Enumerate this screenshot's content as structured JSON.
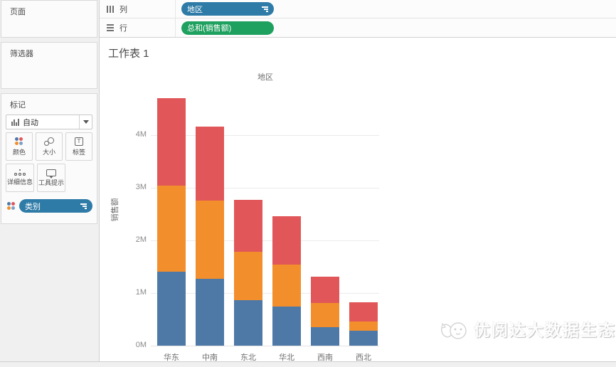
{
  "left_panel": {
    "pages_label": "页面",
    "filters_label": "筛选器",
    "marks": {
      "title": "标记",
      "mark_type": "自动",
      "buttons": [
        {
          "label": "颜色",
          "icon": "color-dots-icon"
        },
        {
          "label": "大小",
          "icon": "size-circles-icon"
        },
        {
          "label": "标签",
          "icon": "label-t-icon"
        },
        {
          "label": "详细信息",
          "icon": "detail-dots-icon"
        },
        {
          "label": "工具提示",
          "icon": "tooltip-bubble-icon"
        }
      ],
      "pill": {
        "label": "类别"
      }
    }
  },
  "shelves": {
    "columns": {
      "label": "列",
      "pill": "地区"
    },
    "rows": {
      "label": "行",
      "pill": "总和(销售额)"
    }
  },
  "worksheet": {
    "title": "工作表 1",
    "watermark": "优阅达大数据生态"
  },
  "chart_data": {
    "type": "bar",
    "stacked": true,
    "title": "地区",
    "xlabel": "",
    "ylabel": "销售额",
    "categories": [
      "华东",
      "中南",
      "东北",
      "华北",
      "西南",
      "西北"
    ],
    "series": [
      {
        "name": "blue-segment",
        "color": "#4e79a7",
        "values": [
          1.41,
          1.27,
          0.86,
          0.74,
          0.35,
          0.28
        ]
      },
      {
        "name": "orange-segment",
        "color": "#f28e2b",
        "values": [
          1.63,
          1.49,
          0.92,
          0.8,
          0.46,
          0.17
        ]
      },
      {
        "name": "red-segment",
        "color": "#e15759",
        "values": [
          1.66,
          1.4,
          0.98,
          0.92,
          0.5,
          0.37
        ]
      }
    ],
    "totals": [
      4.7,
      4.16,
      2.76,
      2.46,
      1.31,
      0.82
    ],
    "y_ticks": [
      "0M",
      "1M",
      "2M",
      "3M",
      "4M"
    ],
    "ylim": [
      0,
      4.7
    ],
    "unit": "M",
    "grid": true,
    "legend": "none"
  },
  "colors": {
    "dimension_pill_blue": "#2e7ba7",
    "measure_pill_green": "#1ea05e",
    "bar_blue": "#4e79a7",
    "bar_orange": "#f28e2b",
    "bar_red": "#e15759",
    "panel_background": "#f0f0f0",
    "gridline": "#ebebeb"
  }
}
